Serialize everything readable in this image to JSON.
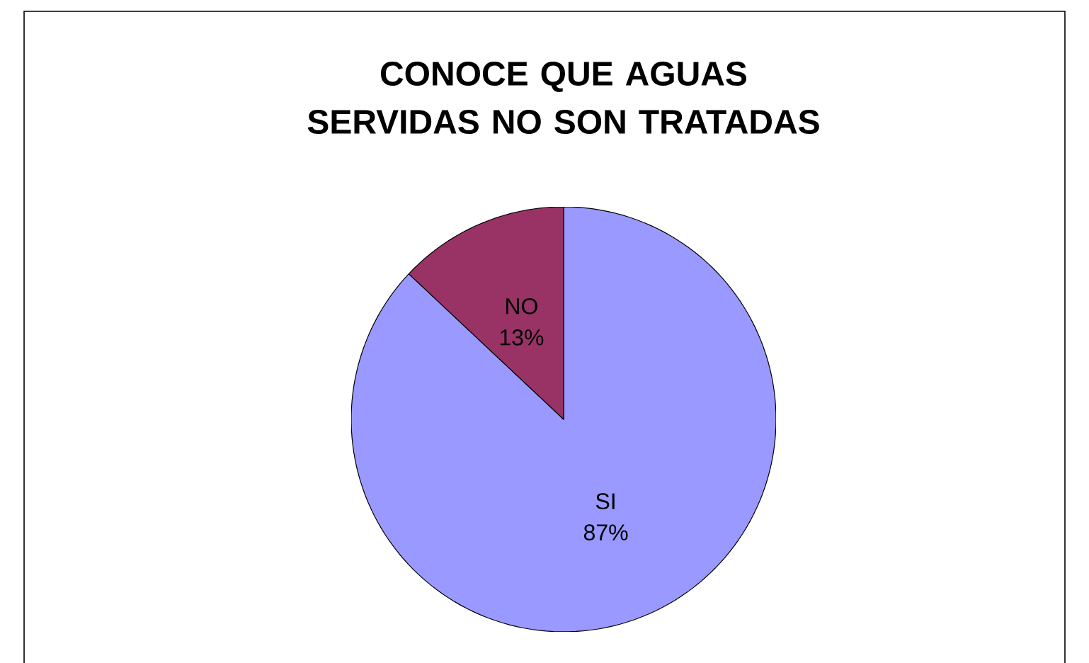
{
  "chart_data": {
    "type": "pie",
    "title": "CONOCE QUE AGUAS SERVIDAS NO SON TRATADAS",
    "categories": [
      "SI",
      "NO"
    ],
    "values": [
      87,
      13
    ],
    "value_labels": [
      "87%",
      "13%"
    ],
    "colors": [
      "#9999ff",
      "#993366"
    ]
  }
}
